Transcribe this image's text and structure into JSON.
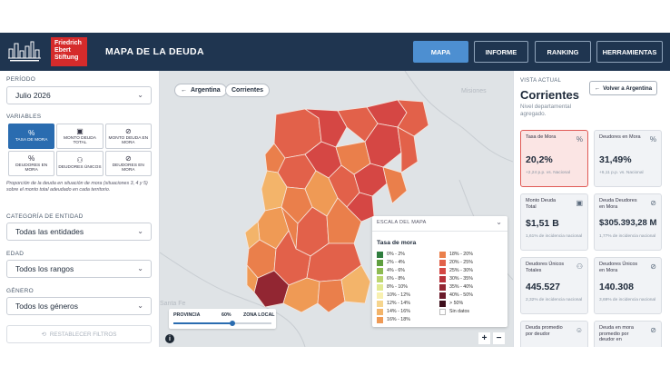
{
  "header": {
    "logo_text": "Friedrich Ebert Stiftung",
    "title": "MAPA DE LA DEUDA",
    "nav": [
      "MAPA",
      "INFORME",
      "RANKING",
      "HERRAMIENTAS"
    ]
  },
  "filters": {
    "period_label": "PERÍODO",
    "period_value": "Julio 2026",
    "variables_label": "VARIABLES",
    "variables": [
      {
        "label": "TASA DE MORA",
        "icon": "percent-icon",
        "glyph": "%"
      },
      {
        "label": "MONTO DEUDA TOTAL",
        "icon": "money-icon",
        "glyph": "▣"
      },
      {
        "label": "MONTO DEUDA EN MORA",
        "icon": "money-off-icon",
        "glyph": "⊘"
      },
      {
        "label": "DEUDORES EN MORA",
        "icon": "percent-icon",
        "glyph": "%"
      },
      {
        "label": "DEUDORES ÚNICOS",
        "icon": "people-icon",
        "glyph": "⚇"
      },
      {
        "label": "DEUDORES EN MORA",
        "icon": "people-off-icon",
        "glyph": "⊘"
      }
    ],
    "note": "Proporción de la deuda en situación de mora (situaciones 3, 4 y 5) sobre el monto total adeudado en cada territorio.",
    "entity_label": "CATEGORÍA DE ENTIDAD",
    "entity_value": "Todas las entidades",
    "age_label": "EDAD",
    "age_value": "Todos los rangos",
    "gender_label": "GÉNERO",
    "gender_value": "Todos los géneros",
    "reset_label": "RESTABLECER FILTROS"
  },
  "map": {
    "breadcrumb": [
      "Argentina",
      "Corrientes"
    ],
    "bg_labels": [
      "Misiones",
      "Santa Fe"
    ],
    "legend_header": "ESCALA DEL MAPA",
    "legend_title": "Tasa de mora",
    "legend_items": [
      {
        "label": "0% - 2%",
        "color": "#2f7d3e"
      },
      {
        "label": "2% - 4%",
        "color": "#5f9f3f"
      },
      {
        "label": "4% - 6%",
        "color": "#8dbb52"
      },
      {
        "label": "6% - 8%",
        "color": "#bcd670"
      },
      {
        "label": "8% - 10%",
        "color": "#e2ea92"
      },
      {
        "label": "10% - 12%",
        "color": "#f8f0b0"
      },
      {
        "label": "12% - 14%",
        "color": "#f6d58e"
      },
      {
        "label": "14% - 16%",
        "color": "#f3b46a"
      },
      {
        "label": "16% - 18%",
        "color": "#ef9a55"
      },
      {
        "label": "18% - 20%",
        "color": "#ea7f4b"
      },
      {
        "label": "20% - 25%",
        "color": "#e2614a"
      },
      {
        "label": "25% - 30%",
        "color": "#d54744"
      },
      {
        "label": "30% - 35%",
        "color": "#b8323b"
      },
      {
        "label": "35% - 40%",
        "color": "#922632"
      },
      {
        "label": "40% - 50%",
        "color": "#6a1a2a"
      },
      {
        "label": "> 50%",
        "color": "#3e0f1c"
      },
      {
        "label": "Sin datos",
        "color": "#ffffff"
      }
    ],
    "slider_left": "PROVINCIA",
    "slider_value": "60%",
    "slider_right": "ZONA LOCAL",
    "zoom_in": "+",
    "zoom_out": "−",
    "info": "i"
  },
  "summary": {
    "eyebrow": "VISTA ACTUAL",
    "title": "Corrientes",
    "subtitle": "Nivel departamental agregado.",
    "back_label": "Volver a Argentina",
    "cards": [
      {
        "title": "Tasa de Mora",
        "value": "20,2%",
        "sub": "+2,24 p.p. vs. Nacional",
        "icon": "percent-icon",
        "glyph": "%"
      },
      {
        "title": "Deudores en Mora",
        "value": "31,49%",
        "sub": "+6,11 p.p. vs. Nacional",
        "icon": "percent-icon",
        "glyph": "%"
      },
      {
        "title": "Monto Deuda Total",
        "value": "$1,51 B",
        "sub": "1,61% de incidencia nacional",
        "icon": "money-icon",
        "glyph": "▣"
      },
      {
        "title": "Deuda Deudores en Mora",
        "value": "$305.393,28 M",
        "sub": "1,77% de incidencia nacional",
        "icon": "money-off-icon",
        "glyph": "⊘"
      },
      {
        "title": "Deudores Únicos Totales",
        "value": "445.527",
        "sub": "2,32% de incidencia nacional",
        "icon": "people-icon",
        "glyph": "⚇"
      },
      {
        "title": "Deudores Únicos en Mora",
        "value": "140.308",
        "sub": "3,69% de incidencia nacional",
        "icon": "people-off-icon",
        "glyph": "⊘"
      },
      {
        "title": "Deuda promedio por deudor",
        "value": "",
        "sub": "",
        "icon": "user-icon",
        "glyph": "☺"
      },
      {
        "title": "Deuda en mora promedio por deudor en",
        "value": "",
        "sub": "",
        "icon": "user-off-icon",
        "glyph": "⊘"
      }
    ]
  },
  "colors": {
    "header": "#1f3550",
    "accent": "#4d8fd1",
    "brand_red": "#d52b2b",
    "highlight_card": "#e05a56"
  }
}
